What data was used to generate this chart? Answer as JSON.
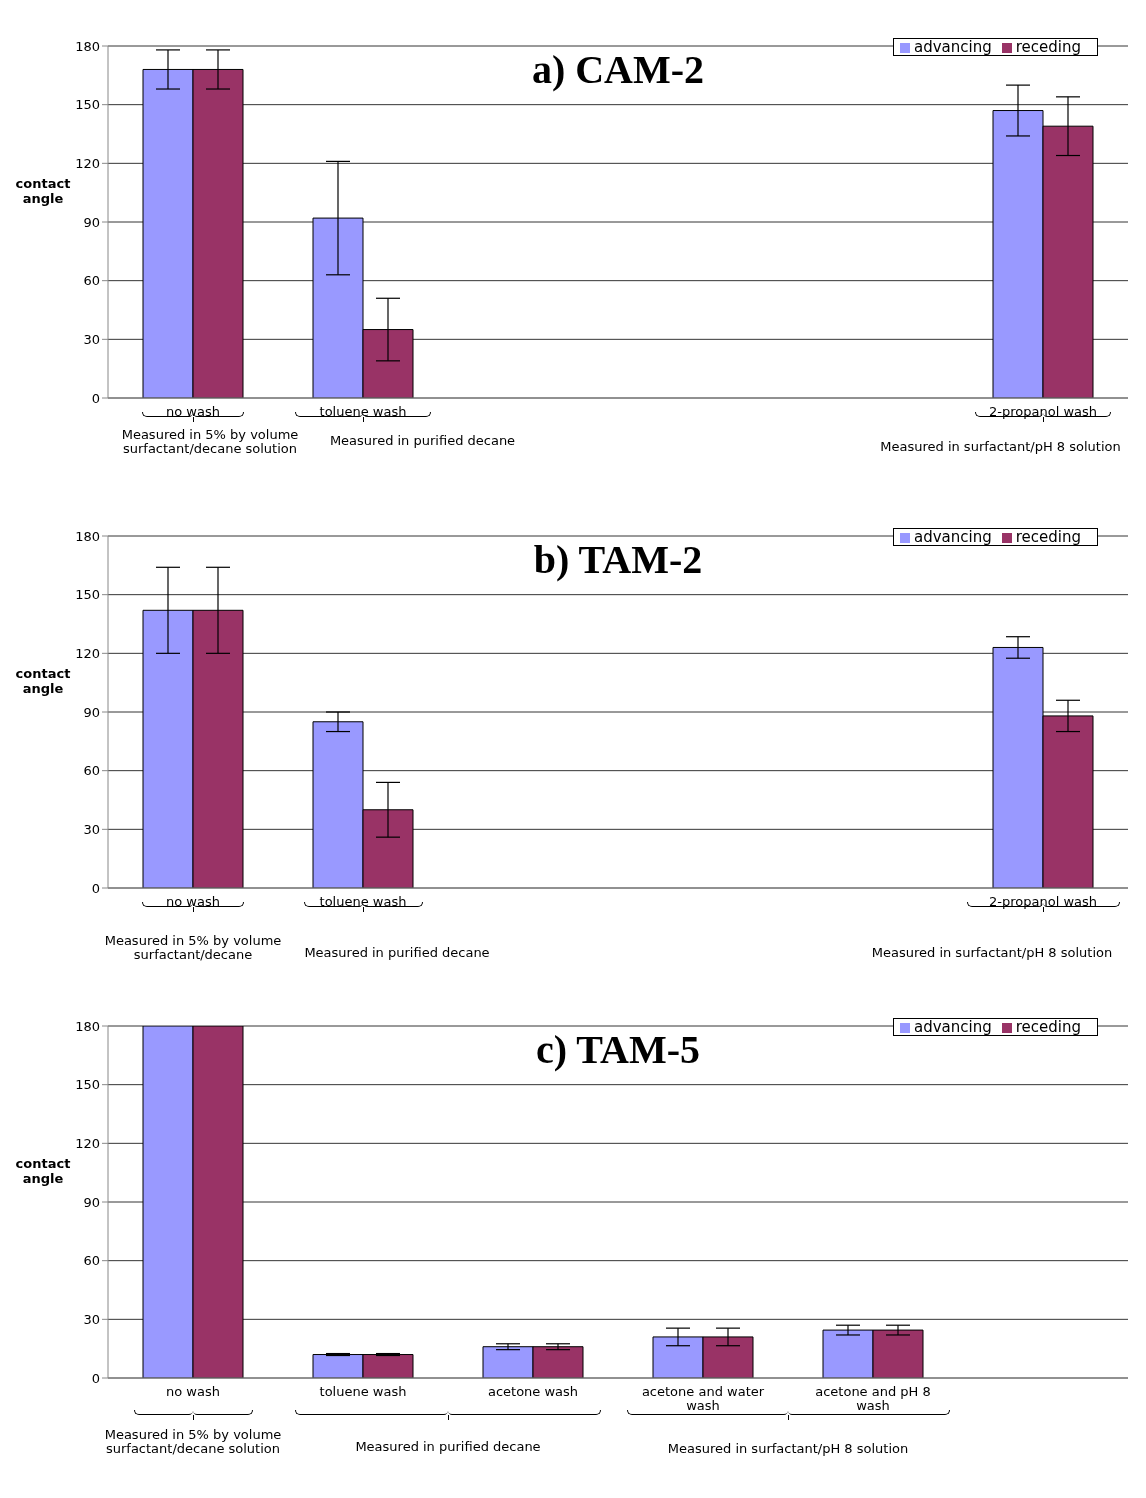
{
  "chart_data": [
    {
      "type": "bar",
      "title": "a) CAM-2",
      "ylabel": "contact angle",
      "categories": [
        "no wash",
        "toluene wash",
        null,
        null,
        null,
        "2-propanol wash"
      ],
      "series": [
        {
          "name": "advancing",
          "color": "#9999ff",
          "values": [
            168,
            92,
            null,
            null,
            null,
            147
          ],
          "errors": [
            10,
            29,
            null,
            null,
            null,
            13
          ]
        },
        {
          "name": "receding",
          "color": "#993366",
          "values": [
            168,
            35,
            null,
            null,
            null,
            139
          ],
          "errors": [
            10,
            16,
            null,
            null,
            null,
            15
          ]
        }
      ],
      "ylim": [
        0,
        180
      ],
      "yticks": [
        0,
        30,
        60,
        90,
        120,
        150,
        180
      ],
      "grid": "y",
      "legend": "top right",
      "annotations": [
        "Measured in 5% by volume surfactant/decane solution",
        "Measured in purified decane",
        "Measured in surfactant/pH 8 solution"
      ]
    },
    {
      "type": "bar",
      "title": "b) TAM-2",
      "ylabel": "contact angle",
      "categories": [
        "no wash",
        "toluene wash",
        null,
        null,
        null,
        "2-propanol wash"
      ],
      "series": [
        {
          "name": "advancing",
          "color": "#9999ff",
          "values": [
            142,
            85,
            null,
            null,
            null,
            123
          ],
          "errors": [
            22,
            5,
            null,
            null,
            null,
            5.5
          ]
        },
        {
          "name": "receding",
          "color": "#993366",
          "values": [
            142,
            40,
            null,
            null,
            null,
            88
          ],
          "errors": [
            22,
            14,
            null,
            null,
            null,
            8
          ]
        }
      ],
      "ylim": [
        0,
        180
      ],
      "yticks": [
        0,
        30,
        60,
        90,
        120,
        150,
        180
      ],
      "grid": "y",
      "legend": "top right",
      "annotations": [
        "Measured in 5% by volume surfactant/decane",
        "Measured in purified decane",
        "Measured in surfactant/pH 8 solution"
      ]
    },
    {
      "type": "bar",
      "title": "c) TAM-5",
      "ylabel": "contact angle",
      "categories": [
        "no wash",
        "toluene wash",
        "acetone wash",
        "acetone and water wash",
        "acetone and pH 8 wash",
        null
      ],
      "series": [
        {
          "name": "advancing",
          "color": "#9999ff",
          "values": [
            180,
            12,
            16,
            21,
            24.5,
            null
          ],
          "errors": [
            null,
            0.5,
            1.5,
            4.5,
            2.5,
            null
          ]
        },
        {
          "name": "receding",
          "color": "#993366",
          "values": [
            180,
            12,
            16,
            21,
            24.5,
            null
          ],
          "errors": [
            null,
            0.5,
            1.5,
            4.5,
            2.5,
            null
          ]
        }
      ],
      "ylim": [
        0,
        180
      ],
      "yticks": [
        0,
        30,
        60,
        90,
        120,
        150,
        180
      ],
      "grid": "y",
      "legend": "top right",
      "annotations": [
        "Measured in 5% by volume surfactant/decane solution",
        "Measured in purified decane",
        "Measured in surfactant/pH 8 solution"
      ]
    }
  ]
}
